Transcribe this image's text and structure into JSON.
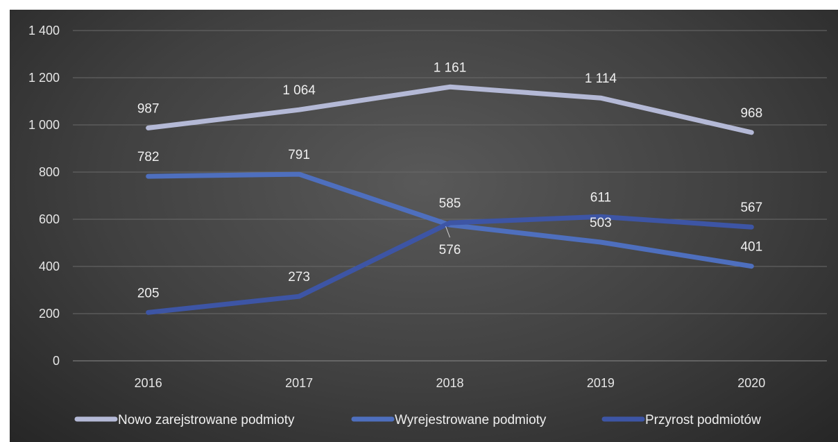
{
  "chart_data": {
    "type": "line",
    "categories": [
      "2016",
      "2017",
      "2018",
      "2019",
      "2020"
    ],
    "ylim": [
      0,
      1400
    ],
    "yticks": [
      0,
      200,
      400,
      600,
      800,
      1000,
      1200,
      1400
    ],
    "ytick_labels": [
      "0",
      "200",
      "400",
      "600",
      "800",
      "1 000",
      "1 200",
      "1 400"
    ],
    "grid": true,
    "legend_position": "bottom",
    "series": [
      {
        "name": "Nowo zarejstrowane podmioty",
        "color": "#b4b9d6",
        "values": [
          987,
          1064,
          1161,
          1114,
          968
        ],
        "labels": [
          "987",
          "1 064",
          "1 161",
          "1 114",
          "968"
        ]
      },
      {
        "name": "Wyrejestrowane podmioty",
        "color": "#4e6fbe",
        "values": [
          782,
          791,
          576,
          503,
          401
        ],
        "labels": [
          "782",
          "791",
          "576",
          "503",
          "401"
        ]
      },
      {
        "name": "Przyrost podmiotów",
        "color": "#3d55a5",
        "values": [
          205,
          273,
          585,
          611,
          567
        ],
        "labels": [
          "205",
          "273",
          "585",
          "611",
          "567"
        ]
      }
    ]
  }
}
